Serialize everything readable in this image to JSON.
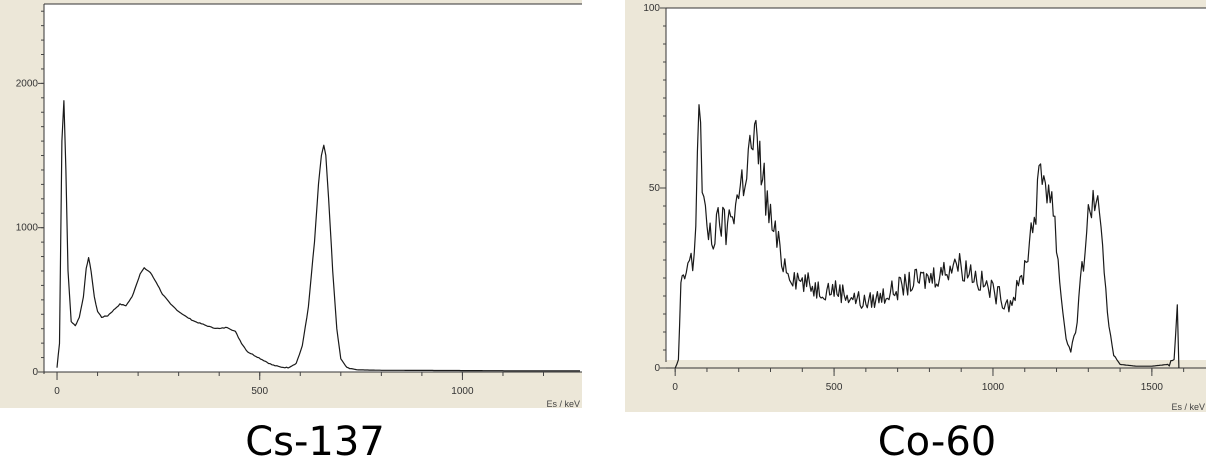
{
  "chart_data": [
    {
      "type": "line",
      "caption": "Cs-137",
      "xlabel": "Es / keV",
      "xlim": [
        -5,
        1290
      ],
      "ylim": [
        0,
        2550
      ],
      "xticks": [
        0,
        500,
        1000
      ],
      "yticks": [
        0,
        1000,
        2000
      ],
      "grid": false,
      "series": [
        {
          "points": [
            [
              0,
              30
            ],
            [
              6,
              200
            ],
            [
              12,
              1600
            ],
            [
              17,
              1880
            ],
            [
              22,
              1400
            ],
            [
              27,
              700
            ],
            [
              35,
              350
            ],
            [
              45,
              320
            ],
            [
              55,
              380
            ],
            [
              65,
              520
            ],
            [
              72,
              720
            ],
            [
              78,
              790
            ],
            [
              84,
              700
            ],
            [
              92,
              520
            ],
            [
              100,
              420
            ],
            [
              110,
              380
            ],
            [
              125,
              390
            ],
            [
              140,
              430
            ],
            [
              155,
              470
            ],
            [
              170,
              460
            ],
            [
              185,
              520
            ],
            [
              195,
              600
            ],
            [
              205,
              680
            ],
            [
              215,
              720
            ],
            [
              230,
              690
            ],
            [
              245,
              620
            ],
            [
              260,
              540
            ],
            [
              280,
              470
            ],
            [
              300,
              420
            ],
            [
              320,
              380
            ],
            [
              340,
              350
            ],
            [
              360,
              330
            ],
            [
              380,
              310
            ],
            [
              400,
              300
            ],
            [
              420,
              310
            ],
            [
              440,
              280
            ],
            [
              455,
              200
            ],
            [
              470,
              140
            ],
            [
              490,
              110
            ],
            [
              510,
              80
            ],
            [
              530,
              50
            ],
            [
              550,
              35
            ],
            [
              570,
              30
            ],
            [
              590,
              60
            ],
            [
              605,
              180
            ],
            [
              620,
              450
            ],
            [
              635,
              900
            ],
            [
              645,
              1300
            ],
            [
              652,
              1500
            ],
            [
              658,
              1570
            ],
            [
              663,
              1500
            ],
            [
              670,
              1200
            ],
            [
              680,
              700
            ],
            [
              690,
              300
            ],
            [
              700,
              90
            ],
            [
              715,
              30
            ],
            [
              740,
              15
            ],
            [
              800,
              12
            ],
            [
              1000,
              10
            ],
            [
              1150,
              8
            ],
            [
              1290,
              8
            ]
          ]
        }
      ]
    },
    {
      "type": "line",
      "caption": "Co-60",
      "xlabel": "Es / keV",
      "xlim": [
        -10,
        1620
      ],
      "ylim": [
        0,
        100
      ],
      "xticks": [
        0,
        500,
        1000,
        1500
      ],
      "yticks": [
        0,
        50,
        100
      ],
      "grid": false,
      "series": [
        {
          "points": [
            [
              0,
              0
            ],
            [
              10,
              2
            ],
            [
              18,
              22
            ],
            [
              30,
              25
            ],
            [
              45,
              30
            ],
            [
              55,
              28
            ],
            [
              65,
              40
            ],
            [
              75,
              80
            ],
            [
              85,
              50
            ],
            [
              95,
              40
            ],
            [
              110,
              38
            ],
            [
              125,
              36
            ],
            [
              140,
              42
            ],
            [
              160,
              38
            ],
            [
              180,
              44
            ],
            [
              200,
              48
            ],
            [
              220,
              55
            ],
            [
              235,
              60
            ],
            [
              250,
              64
            ],
            [
              262,
              58
            ],
            [
              275,
              55
            ],
            [
              290,
              45
            ],
            [
              310,
              38
            ],
            [
              330,
              32
            ],
            [
              350,
              28
            ],
            [
              370,
              26
            ],
            [
              400,
              24
            ],
            [
              450,
              22
            ],
            [
              500,
              22
            ],
            [
              550,
              20
            ],
            [
              600,
              18
            ],
            [
              650,
              20
            ],
            [
              700,
              22
            ],
            [
              750,
              24
            ],
            [
              800,
              25
            ],
            [
              850,
              27
            ],
            [
              880,
              30
            ],
            [
              900,
              28
            ],
            [
              930,
              27
            ],
            [
              960,
              24
            ],
            [
              990,
              22
            ],
            [
              1020,
              20
            ],
            [
              1050,
              18
            ],
            [
              1080,
              22
            ],
            [
              1100,
              28
            ],
            [
              1120,
              38
            ],
            [
              1140,
              48
            ],
            [
              1155,
              54
            ],
            [
              1170,
              52
            ],
            [
              1185,
              48
            ],
            [
              1200,
              35
            ],
            [
              1215,
              20
            ],
            [
              1230,
              8
            ],
            [
              1245,
              5
            ],
            [
              1260,
              10
            ],
            [
              1275,
              22
            ],
            [
              1290,
              35
            ],
            [
              1305,
              44
            ],
            [
              1320,
              48
            ],
            [
              1335,
              40
            ],
            [
              1350,
              25
            ],
            [
              1365,
              12
            ],
            [
              1380,
              4
            ],
            [
              1400,
              1
            ],
            [
              1450,
              0.5
            ],
            [
              1500,
              0.5
            ],
            [
              1550,
              1
            ],
            [
              1570,
              2
            ],
            [
              1580,
              18
            ],
            [
              1585,
              0
            ]
          ]
        }
      ]
    }
  ]
}
